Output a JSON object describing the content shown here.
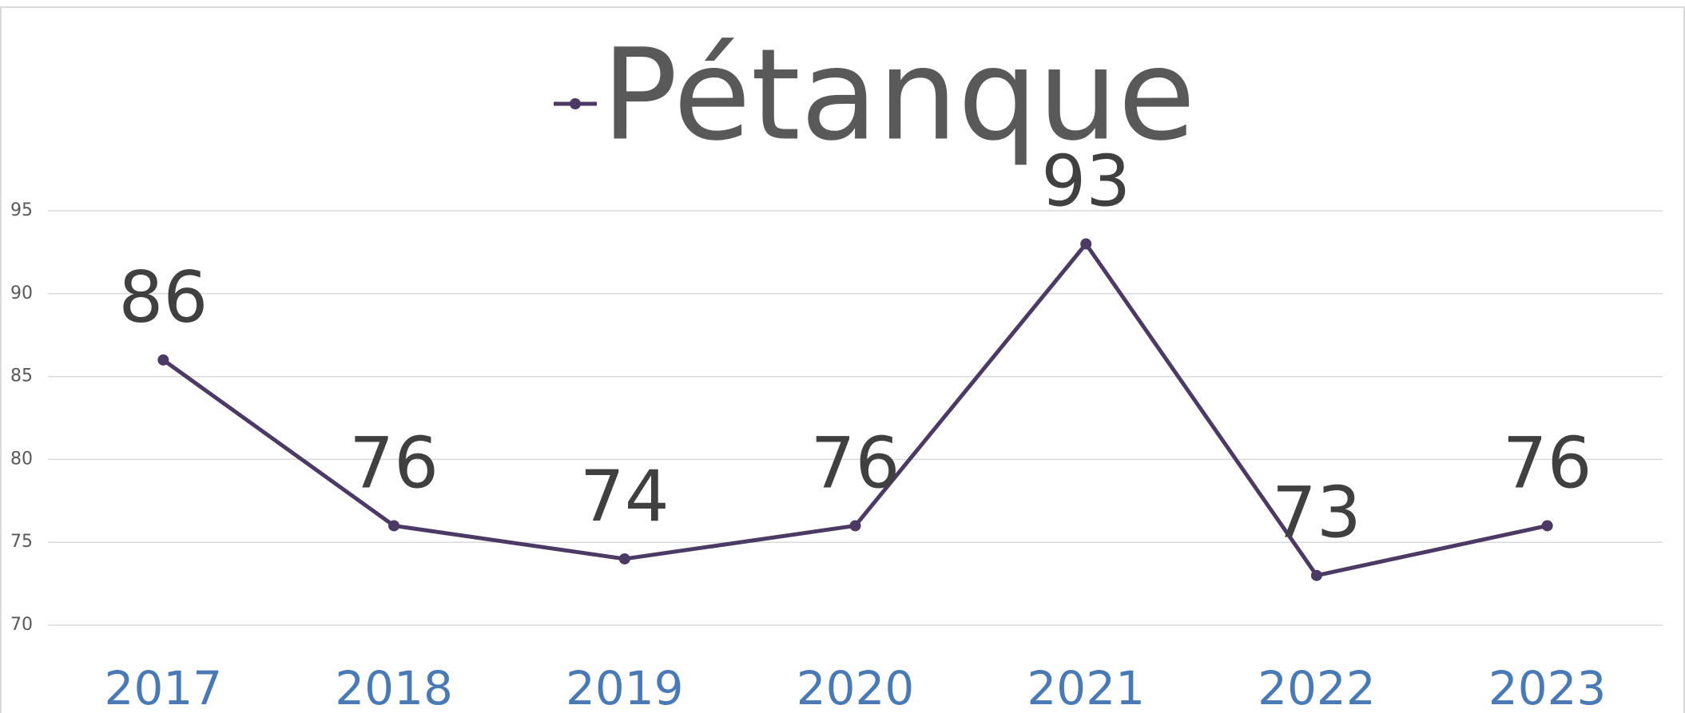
{
  "chart_data": {
    "type": "line",
    "categories": [
      "2017",
      "2018",
      "2019",
      "2020",
      "2021",
      "2022",
      "2023"
    ],
    "series": [
      {
        "name": "Pétanque",
        "color": "#4b3a63",
        "values": [
          86,
          76,
          74,
          76,
          93,
          73,
          76
        ]
      }
    ],
    "ylim": [
      70,
      95
    ],
    "yticks": [
      70,
      75,
      80,
      85,
      90,
      95
    ],
    "grid": true,
    "legend": "top"
  }
}
